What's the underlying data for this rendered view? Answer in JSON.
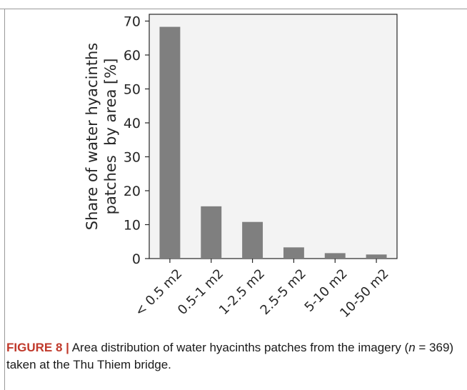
{
  "chart_data": {
    "type": "bar",
    "categories": [
      "< 0.5 m2",
      "0.5-1 m2",
      "1-2.5 m2",
      "2.5-5 m2",
      "5-10 m2",
      "10-50 m2"
    ],
    "values": [
      68.3,
      15.4,
      10.8,
      3.3,
      1.6,
      1.2
    ],
    "ylabel_line1": "Share of water hyacinths",
    "ylabel_line2": "patches  by area [%]",
    "ylim": [
      0,
      72
    ],
    "yticks": [
      0,
      10,
      20,
      30,
      40,
      50,
      60,
      70
    ],
    "grid": false,
    "bar_color": "#7f7f7f",
    "plot_bg": "#f3f3f3"
  },
  "caption": {
    "label": "FIGURE 8",
    "separator": "|",
    "text_part1": " Area distribution of water hyacinths patches from the imagery (",
    "n_symbol": "n",
    "text_part2": " = 369) taken at the Thu Thiem bridge."
  }
}
